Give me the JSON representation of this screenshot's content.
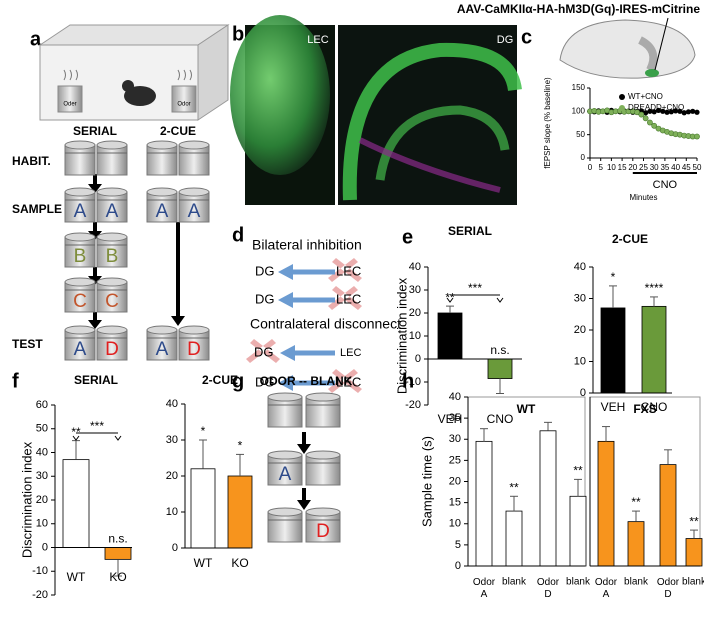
{
  "panel_labels": [
    "a",
    "b",
    "c",
    "d",
    "e",
    "f",
    "g",
    "h"
  ],
  "panel_a": {
    "odor_labels": [
      "Oder",
      "Odor"
    ],
    "columns": [
      "SERIAL",
      "2-CUE"
    ],
    "rows": [
      "HABIT.",
      "SAMPLE",
      "TEST"
    ],
    "serial_sample": [
      [
        "A",
        "A"
      ],
      [
        "B",
        "B"
      ],
      [
        "C",
        "C"
      ]
    ],
    "serial_test": [
      "A",
      "D"
    ],
    "two_cue_sample": [
      "A",
      "A"
    ],
    "two_cue_test": [
      "A",
      "D"
    ]
  },
  "panel_b": {
    "labels": [
      "LEC",
      "DG"
    ]
  },
  "panel_c": {
    "construct": "AAV-CaMKIIα-HA-hM3D(Gq)-IRES-mCitrine"
  },
  "panel_d": {
    "title1": "Bilateral inhibition",
    "title2": "Contralateral disconnect",
    "rows": [
      [
        "DG",
        "LEC"
      ],
      [
        "DG",
        "LEC"
      ],
      [
        "DG",
        "LEC"
      ],
      [
        "DG",
        "LEC"
      ]
    ]
  },
  "panel_g": {
    "title": "ODOR -- BLANK",
    "letters": [
      "A",
      "D"
    ]
  },
  "chart_data": [
    {
      "type": "line",
      "xlabel": "Minutes",
      "ylabel": "fEPSP slope (% baseline)",
      "x": [
        0,
        2,
        4,
        6,
        8,
        10,
        12,
        14,
        16,
        18,
        20,
        22,
        24,
        26,
        28,
        30,
        32,
        34,
        36,
        38,
        40,
        42,
        44,
        46,
        48,
        50
      ],
      "series": [
        {
          "name": "WT+CNO",
          "color": "#000000",
          "values": [
            100,
            99,
            101,
            100,
            98,
            102,
            100,
            99,
            101,
            100,
            98,
            100,
            101,
            97,
            100,
            99,
            102,
            100,
            98,
            99,
            101,
            100,
            97,
            99,
            100,
            98
          ]
        },
        {
          "name": "DREADD+CNO",
          "color": "#7fb05a",
          "values": [
            100,
            101,
            99,
            100,
            102,
            98,
            100,
            101,
            99,
            100,
            100,
            98,
            93,
            85,
            76,
            69,
            63,
            59,
            56,
            53,
            51,
            50,
            48,
            47,
            46,
            46
          ]
        }
      ],
      "annotation": {
        "text": "CNO",
        "x": [
          20,
          50
        ]
      },
      "xlim": [
        0,
        50
      ],
      "xticks": [
        0,
        5,
        10,
        15,
        20,
        25,
        30,
        35,
        40,
        45,
        50
      ],
      "ylim": [
        0,
        150
      ],
      "yticks": [
        0,
        50,
        100,
        150
      ]
    },
    {
      "type": "bar",
      "title": "SERIAL",
      "ylabel": "Discrimination index",
      "categories": [
        "VEH",
        "CNO"
      ],
      "values": [
        20,
        -8.5
      ],
      "errors": [
        3,
        6.5
      ],
      "colors": [
        "#000000",
        "#6a9a3a"
      ],
      "significance": [
        "**",
        "n.s."
      ],
      "comparison": "***",
      "ylim": [
        -20,
        40
      ],
      "yticks": [
        -20,
        -10,
        0,
        10,
        20,
        30,
        40
      ]
    },
    {
      "type": "bar",
      "title": "2-CUE",
      "categories": [
        "VEH",
        "CNO"
      ],
      "values": [
        27,
        27.5
      ],
      "errors": [
        7,
        3
      ],
      "colors": [
        "#000000",
        "#6a9a3a"
      ],
      "significance": [
        "*",
        "****"
      ],
      "ylim": [
        0,
        40
      ],
      "yticks": [
        0,
        10,
        20,
        30,
        40
      ]
    },
    {
      "type": "bar",
      "title": "SERIAL",
      "ylabel": "Discrimination index",
      "categories": [
        "WT",
        "KO"
      ],
      "values": [
        37,
        -5
      ],
      "errors": [
        8,
        7
      ],
      "colors": [
        "#ffffff",
        "#f7941d"
      ],
      "significance": [
        "**",
        "n.s."
      ],
      "comparison": "***",
      "ylim": [
        -20,
        60
      ],
      "yticks": [
        -20,
        -10,
        0,
        10,
        20,
        30,
        40,
        50,
        60
      ]
    },
    {
      "type": "bar",
      "title": "2-CUE",
      "categories": [
        "WT",
        "KO"
      ],
      "values": [
        22,
        20
      ],
      "errors": [
        8,
        6
      ],
      "colors": [
        "#ffffff",
        "#f7941d"
      ],
      "significance": [
        "*",
        "*"
      ],
      "ylim": [
        0,
        40
      ],
      "yticks": [
        0,
        10,
        20,
        30,
        40
      ]
    },
    {
      "type": "bar",
      "title": "WT",
      "ylabel": "Sample time (s)",
      "categories": [
        "Odor A",
        "blank",
        "Odor D",
        "blank"
      ],
      "values": [
        29.5,
        13,
        32,
        16.5
      ],
      "errors": [
        3,
        3.5,
        2,
        4
      ],
      "color": "#ffffff",
      "significance": [
        null,
        "**",
        null,
        "**"
      ],
      "ylim": [
        0,
        40
      ],
      "yticks": [
        0,
        5,
        10,
        15,
        20,
        25,
        30,
        35,
        40
      ]
    },
    {
      "type": "bar",
      "title": "FXS",
      "categories": [
        "Odor A",
        "blank",
        "Odor D",
        "blank"
      ],
      "values": [
        29.5,
        10.5,
        24,
        6.5
      ],
      "errors": [
        3.5,
        2.5,
        3.5,
        2
      ],
      "color": "#f7941d",
      "significance": [
        null,
        "**",
        null,
        "**"
      ],
      "ylim": [
        0,
        40
      ]
    }
  ]
}
